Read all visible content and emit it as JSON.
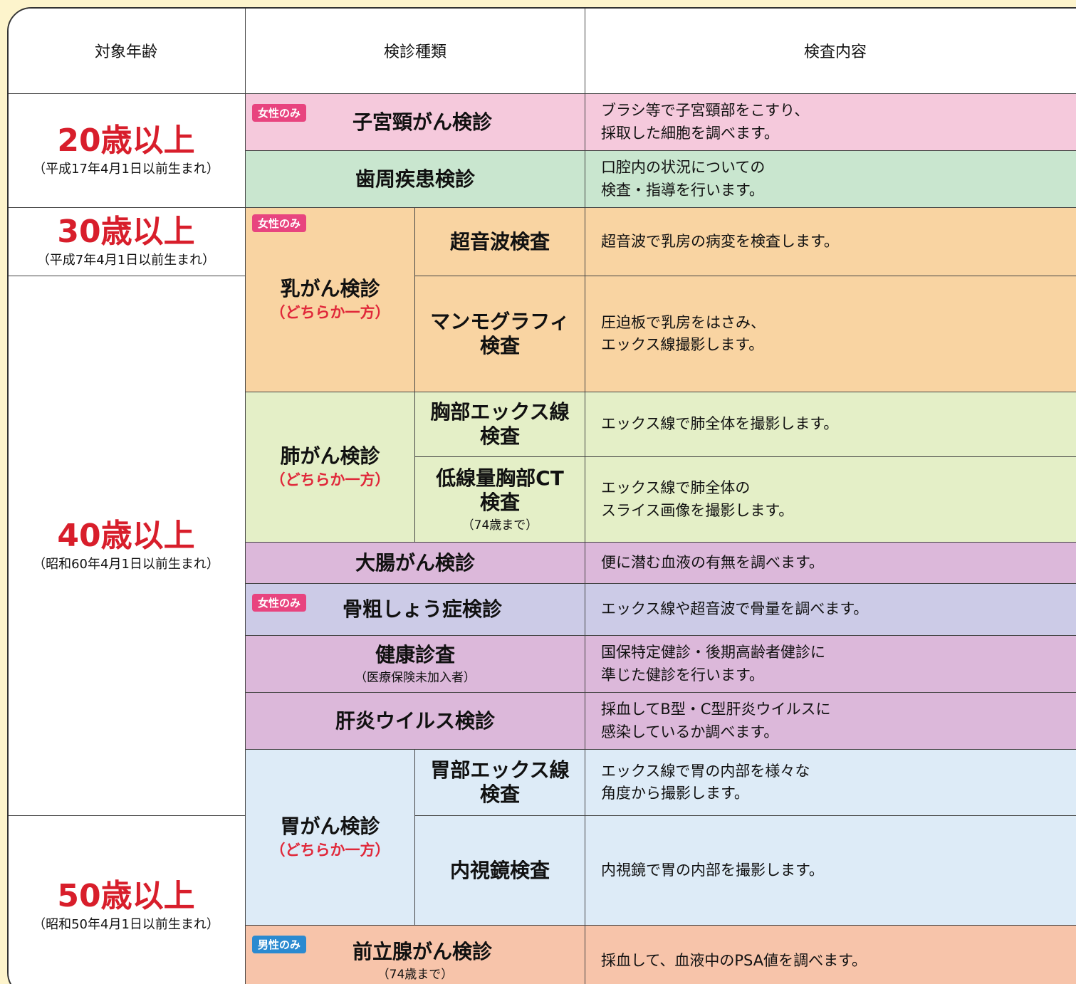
{
  "table": {
    "header": [
      "対象年齢",
      "検診種類",
      "検査内容"
    ],
    "age_groups": [
      {
        "age": "20歳以上",
        "born": "（平成17年4月1日以前生まれ）"
      },
      {
        "age": "30歳以上",
        "born": "（平成7年4月1日以前生まれ）"
      },
      {
        "age": "40歳以上",
        "born": "（昭和60年4月1日以前生まれ）"
      },
      {
        "age": "50歳以上",
        "born": "（昭和50年4月1日以前生まれ）"
      }
    ],
    "rows": [
      {
        "badge": "女性のみ",
        "name": "子宮頸がん検診",
        "content": [
          "ブラシ等で子宮頸部をこすり、",
          "採取した細胞を調べます。"
        ]
      },
      {
        "name": "歯周疾患検診",
        "content": [
          "口腔内の状況についての",
          "検査・指導を行います。"
        ]
      },
      {
        "badge": "女性のみ",
        "name": "乳がん検診",
        "choice": "（どちらか一方）",
        "tests": [
          {
            "name": [
              "超音波検査"
            ],
            "content": [
              "超音波で乳房の病変を検査します。"
            ]
          },
          {
            "name": [
              "マンモグラフィ",
              "検査"
            ],
            "content": [
              "圧迫板で乳房をはさみ、",
              "エックス線撮影します。"
            ]
          }
        ]
      },
      {
        "name": "肺がん検診",
        "choice": "（どちらか一方）",
        "tests": [
          {
            "name": [
              "胸部エックス線",
              "検査"
            ],
            "content": [
              "エックス線で肺全体を撮影します。"
            ]
          },
          {
            "name": [
              "低線量胸部CT",
              "検査"
            ],
            "note": "（74歳まで）",
            "content": [
              "エックス線で肺全体の",
              "スライス画像を撮影します。"
            ]
          }
        ]
      },
      {
        "name": "大腸がん検診",
        "content": [
          "便に潜む血液の有無を調べます。"
        ]
      },
      {
        "badge": "女性のみ",
        "name": "骨粗しょう症検診",
        "content": [
          "エックス線や超音波で骨量を調べます。"
        ]
      },
      {
        "name": "健康診査",
        "note": "（医療保険未加入者）",
        "content": [
          "国保特定健診・後期高齢者健診に",
          "準じた健診を行います。"
        ]
      },
      {
        "name": "肝炎ウイルス検診",
        "content": [
          "採血してB型・C型肝炎ウイルスに",
          "感染しているか調べます。"
        ]
      },
      {
        "name": "胃がん検診",
        "choice": "（どちらか一方）",
        "tests": [
          {
            "name": [
              "胃部エックス線",
              "検査"
            ],
            "content": [
              "エックス線で胃の内部を様々な",
              "角度から撮影します。"
            ]
          },
          {
            "name": [
              "内視鏡検査"
            ],
            "content": [
              "内視鏡で胃の内部を撮影します。"
            ]
          }
        ]
      },
      {
        "badge": "男性のみ",
        "name": "前立腺がん検診",
        "note": "（74歳まで）",
        "content": [
          "採血して、血液中のPSA値を調べます。"
        ]
      }
    ]
  }
}
